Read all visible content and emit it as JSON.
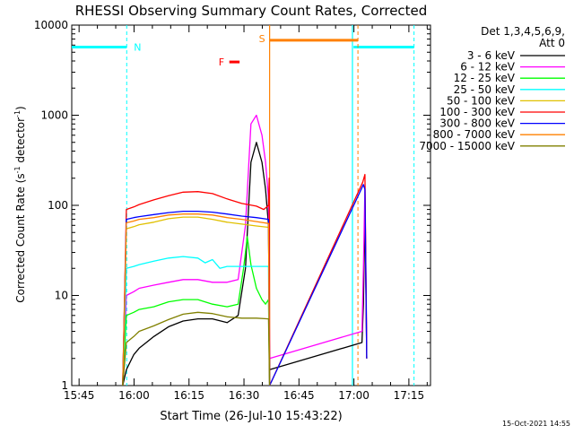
{
  "chart_data": {
    "type": "line",
    "title": "RHESSI Observing Summary Count Rates, Corrected",
    "xlabel": "Start Time (26-Jul-10 15:43:22)",
    "ylabel_main": "Corrected Count Rate (s",
    "ylabel_sup1": "-1",
    "ylabel_mid": " detector",
    "ylabel_sup2": "-1",
    "ylabel_end": ")",
    "y_scale": "log",
    "ylim": [
      1,
      10000
    ],
    "xlim_minutes": [
      -0.4,
      97.5
    ],
    "x_ticks": [
      {
        "label": "15:45",
        "t": 1.6
      },
      {
        "label": "16:00",
        "t": 16.6
      },
      {
        "label": "16:15",
        "t": 31.6
      },
      {
        "label": "16:30",
        "t": 46.6
      },
      {
        "label": "16:45",
        "t": 61.6
      },
      {
        "label": "17:00",
        "t": 76.6
      },
      {
        "label": "17:15",
        "t": 91.6
      }
    ],
    "y_ticks": [
      {
        "label": "1",
        "v": 1
      },
      {
        "label": "10",
        "v": 10
      },
      {
        "label": "100",
        "v": 100
      },
      {
        "label": "1000",
        "v": 1000
      },
      {
        "label": "10000",
        "v": 10000
      }
    ],
    "legend_header": [
      "Det 1,3,4,5,6,9,",
      "Att 0"
    ],
    "legend_position": "top-right",
    "series": [
      {
        "name": "3 - 6 keV",
        "color": "#000000",
        "x": [
          13.5,
          14.5,
          16.5,
          18,
          22,
          26,
          30,
          34,
          38,
          42,
          45,
          47,
          48.5,
          50,
          51.5,
          52.5,
          53.3,
          53.6,
          78.8,
          79.2,
          79.6,
          80.1
        ],
        "y": [
          1,
          1.5,
          2.2,
          2.6,
          3.5,
          4.5,
          5.2,
          5.5,
          5.5,
          5,
          6,
          20,
          300,
          500,
          300,
          150,
          60,
          1.5,
          3,
          8,
          90,
          2
        ]
      },
      {
        "name": "6 - 12 keV",
        "color": "#ff00ff",
        "x": [
          13.5,
          14.5,
          16.5,
          18,
          22,
          26,
          30,
          34,
          38,
          42,
          45,
          47,
          48.5,
          50,
          51.5,
          52.5,
          53.3,
          53.6,
          78.8,
          79.2,
          79.6,
          80.1
        ],
        "y": [
          1,
          10,
          11,
          12,
          13,
          14,
          15,
          15,
          14,
          14,
          15,
          60,
          800,
          1000,
          600,
          300,
          120,
          2,
          4,
          20,
          160,
          3
        ]
      },
      {
        "name": "12 - 25 keV",
        "color": "#00ff00",
        "x": [
          13.5,
          14.5,
          16.5,
          18,
          22,
          26,
          30,
          34,
          38,
          42,
          45,
          46.5,
          47.5,
          48.5,
          50,
          51.5,
          52.5,
          53.3,
          53.6
        ],
        "y": [
          1,
          6,
          6.5,
          7,
          7.5,
          8.5,
          9,
          9,
          8,
          7.5,
          8,
          20,
          45,
          22,
          12,
          9,
          8,
          9,
          1
        ]
      },
      {
        "name": "25 - 50 keV",
        "color": "#00ffff",
        "x": [
          13.5,
          14.5,
          16.5,
          18,
          22,
          26,
          30,
          34,
          36,
          38,
          40,
          42,
          45,
          48,
          50,
          53.3,
          53.6
        ],
        "y": [
          1,
          20,
          21,
          22,
          24,
          26,
          27,
          26,
          23,
          25,
          20,
          21,
          21,
          21,
          21,
          21,
          1
        ]
      },
      {
        "name": "50 - 100 keV",
        "color": "#e0c000",
        "x": [
          13.5,
          14.5,
          16.5,
          18,
          22,
          26,
          30,
          34,
          38,
          42,
          46,
          50,
          53.3,
          53.6
        ],
        "y": [
          1,
          55,
          58,
          61,
          65,
          71,
          74,
          74,
          70,
          65,
          62,
          59,
          57,
          1
        ]
      },
      {
        "name": "100 - 300 keV",
        "color": "#ff0000",
        "x": [
          13.5,
          14.5,
          16.5,
          18,
          22,
          26,
          30,
          34,
          38,
          42,
          46,
          50,
          52,
          53.3,
          53.5,
          53.6,
          79,
          79.6,
          80.1
        ],
        "y": [
          1,
          90,
          96,
          102,
          115,
          128,
          140,
          142,
          135,
          118,
          105,
          98,
          90,
          100,
          200,
          1,
          180,
          220,
          2
        ]
      },
      {
        "name": "300 - 800 keV",
        "color": "#0000ff",
        "x": [
          13.5,
          14.5,
          16.5,
          18,
          22,
          26,
          30,
          34,
          38,
          42,
          46,
          50,
          53.3,
          53.6,
          79.2,
          79.6,
          80.1
        ],
        "y": [
          1,
          70,
          73,
          75,
          79,
          83,
          86,
          86,
          84,
          80,
          76,
          73,
          70,
          1,
          170,
          150,
          2
        ]
      },
      {
        "name": "800 - 7000 keV",
        "color": "#ff8000",
        "x": [
          13.5,
          14.5,
          16.5,
          18,
          22,
          26,
          30,
          34,
          38,
          42,
          46,
          50,
          53.3,
          53.6
        ],
        "y": [
          1,
          64,
          67,
          70,
          73,
          78,
          80,
          80,
          78,
          73,
          70,
          66,
          63,
          1
        ]
      },
      {
        "name": "7000 - 15000 keV",
        "color": "#808000",
        "x": [
          13.5,
          14.5,
          16.5,
          18,
          22,
          26,
          30,
          34,
          38,
          42,
          46,
          50,
          53.3,
          53.6
        ],
        "y": [
          1,
          3,
          3.5,
          4,
          4.6,
          5.4,
          6.2,
          6.5,
          6.3,
          5.8,
          5.6,
          5.6,
          5.5,
          1
        ]
      }
    ],
    "flags": [
      {
        "label": "N",
        "color": "#00ffff",
        "bars": [
          {
            "x0": -0.4,
            "x1": 14.6,
            "y": 5700
          },
          {
            "x0": 76.5,
            "x1": 93.0,
            "y": 5700
          }
        ],
        "dashed": [
          14.6,
          93.0
        ],
        "solid": [
          76.2
        ]
      },
      {
        "label": "S",
        "color": "#ff8000",
        "bars": [
          {
            "x0": 53.6,
            "x1": 77.7,
            "y": 6800
          }
        ],
        "dashed": [
          77.7
        ],
        "solid": [
          53.6
        ]
      },
      {
        "label": "F",
        "color": "#ff0000",
        "bars": [
          {
            "x0": 42.6,
            "x1": 45.4,
            "y": 3900
          }
        ],
        "dashed": [],
        "solid": []
      }
    ],
    "timestamp": "15-Oct-2021 14:55"
  }
}
